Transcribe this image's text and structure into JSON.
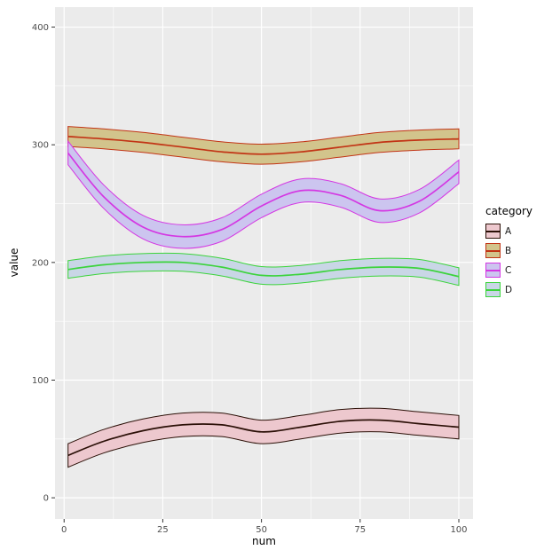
{
  "chart_data": {
    "type": "line",
    "title": "",
    "xlabel": "num",
    "ylabel": "value",
    "legend_title": "category",
    "legend_position": "right",
    "grid": true,
    "panel_bg": "#EBEBEB",
    "grid_color": "#FFFFFF",
    "tick_color": "#333333",
    "tick_label_color": "#4D4D4D",
    "xlim": [
      -2.3,
      103.6
    ],
    "ylim": [
      -18,
      417
    ],
    "x_ticks": [
      0,
      25,
      50,
      75,
      100
    ],
    "y_ticks": [
      0,
      100,
      200,
      300,
      400
    ],
    "x": [
      1,
      10,
      20,
      30,
      40,
      50,
      60,
      70,
      80,
      90,
      100
    ],
    "series": [
      {
        "name": "A",
        "line_color": "#2b1007",
        "fill_color": "#edc8ce",
        "values": [
          36,
          48,
          57,
          62,
          62,
          56,
          60,
          65,
          66,
          63,
          60
        ],
        "half_width": 10
      },
      {
        "name": "B",
        "line_color": "#c23415",
        "fill_color": "#d2c48c",
        "values": [
          307,
          305,
          302,
          298,
          294,
          292,
          294,
          298,
          302,
          304,
          305
        ],
        "half_width": 8.5
      },
      {
        "name": "C",
        "line_color": "#d437e3",
        "fill_color": "#ccc5ef",
        "values": [
          293,
          256,
          230,
          222,
          228,
          248,
          261,
          257,
          244,
          252,
          277
        ],
        "half_width": 10
      },
      {
        "name": "D",
        "line_color": "#3bd43b",
        "fill_color": "#c9d6e6",
        "values": [
          194,
          198,
          200,
          200,
          196,
          189,
          190,
          194,
          196,
          195,
          188
        ],
        "half_width": 7.5
      }
    ]
  }
}
